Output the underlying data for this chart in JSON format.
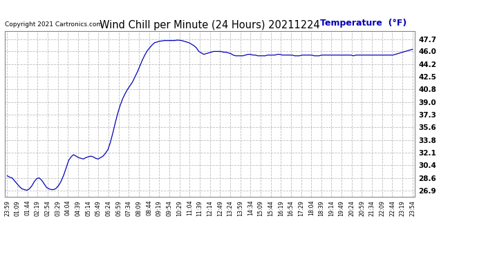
{
  "title": "Wind Chill per Minute (24 Hours) 20211224",
  "copyright": "Copyright 2021 Cartronics.com",
  "legend_label": "Temperature  (°F)",
  "line_color": "#0000bb",
  "background_color": "#ffffff",
  "grid_color": "#bbbbbb",
  "yticks": [
    26.9,
    28.6,
    30.4,
    32.1,
    33.8,
    35.6,
    37.3,
    39.0,
    40.8,
    42.5,
    44.2,
    46.0,
    47.7
  ],
  "ylim": [
    26.0,
    48.8
  ],
  "x_labels": [
    "23:59",
    "01:09",
    "01:44",
    "02:19",
    "02:54",
    "03:29",
    "04:04",
    "04:39",
    "05:14",
    "05:49",
    "06:24",
    "06:59",
    "07:34",
    "08:09",
    "08:44",
    "09:19",
    "09:54",
    "10:29",
    "11:04",
    "11:39",
    "12:14",
    "12:49",
    "13:24",
    "13:59",
    "14:34",
    "15:09",
    "15:44",
    "16:19",
    "16:54",
    "17:29",
    "18:04",
    "18:39",
    "19:14",
    "19:49",
    "20:24",
    "20:59",
    "21:34",
    "22:09",
    "22:44",
    "23:19",
    "23:54"
  ],
  "y_values": [
    28.9,
    28.7,
    28.6,
    28.2,
    27.8,
    27.4,
    27.1,
    27.0,
    26.9,
    27.1,
    27.5,
    28.1,
    28.5,
    28.6,
    28.3,
    27.8,
    27.3,
    27.1,
    27.0,
    27.0,
    27.2,
    27.6,
    28.2,
    29.0,
    30.0,
    31.0,
    31.5,
    31.8,
    31.6,
    31.4,
    31.3,
    31.2,
    31.4,
    31.5,
    31.6,
    31.5,
    31.3,
    31.2,
    31.4,
    31.6,
    32.0,
    32.5,
    33.5,
    34.8,
    36.2,
    37.5,
    38.6,
    39.5,
    40.2,
    40.8,
    41.3,
    41.8,
    42.5,
    43.2,
    44.0,
    44.8,
    45.5,
    46.1,
    46.5,
    46.9,
    47.2,
    47.3,
    47.4,
    47.45,
    47.5,
    47.5,
    47.5,
    47.5,
    47.5,
    47.55,
    47.55,
    47.5,
    47.4,
    47.3,
    47.2,
    47.0,
    46.8,
    46.5,
    46.0,
    45.8,
    45.6,
    45.7,
    45.8,
    45.9,
    46.0,
    46.0,
    46.0,
    46.0,
    45.9,
    45.9,
    45.8,
    45.7,
    45.5,
    45.4,
    45.4,
    45.4,
    45.4,
    45.5,
    45.6,
    45.6,
    45.5,
    45.5,
    45.4,
    45.4,
    45.4,
    45.4,
    45.5,
    45.5,
    45.5,
    45.5,
    45.6,
    45.6,
    45.5,
    45.5,
    45.5,
    45.5,
    45.5,
    45.4,
    45.4,
    45.4,
    45.5,
    45.5,
    45.5,
    45.5,
    45.5,
    45.4,
    45.4,
    45.4,
    45.5,
    45.5,
    45.5,
    45.5,
    45.5,
    45.5,
    45.5,
    45.5,
    45.5,
    45.5,
    45.5,
    45.5,
    45.5,
    45.4,
    45.5,
    45.5,
    45.5,
    45.5,
    45.5,
    45.5,
    45.5,
    45.5,
    45.5,
    45.5,
    45.5,
    45.5,
    45.5,
    45.5,
    45.5,
    45.5,
    45.6,
    45.7,
    45.8,
    45.9,
    46.0,
    46.1,
    46.2,
    46.3
  ]
}
